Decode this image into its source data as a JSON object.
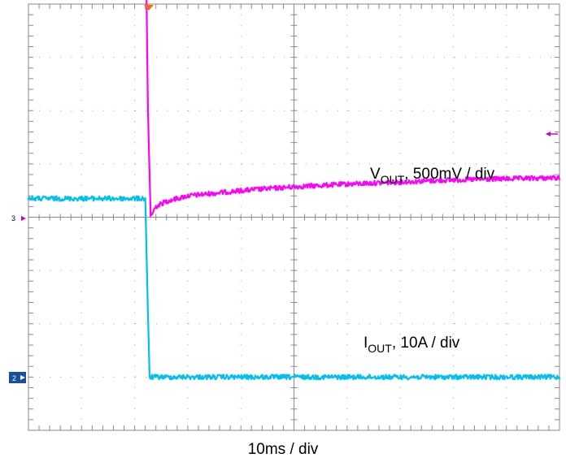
{
  "chart_data": {
    "type": "line",
    "title": "",
    "xlabel": "10ms / div",
    "ylabel": "",
    "x_divisions": 10,
    "y_divisions": 8,
    "grid": true,
    "series": [
      {
        "name": "VOUT, 500mV / div",
        "name_main": "V",
        "name_sub": "OUT",
        "name_rest": ", 500mV / div",
        "channel": "3",
        "color": "#ff00ff",
        "x": [
          0,
          2.2,
          2.25,
          2.3,
          2.4,
          2.6,
          3.0,
          4.0,
          5.0,
          6.0,
          7.0,
          8.0,
          9.0,
          10.0
        ],
        "y": [
          6.05,
          6.05,
          2.0,
          0.02,
          0.2,
          0.3,
          0.4,
          0.5,
          0.57,
          0.62,
          0.66,
          0.7,
          0.72,
          0.74
        ]
      },
      {
        "name": "IOUT, 10A / div",
        "name_main": "I",
        "name_sub": "OUT",
        "name_rest": ", 10A / div",
        "channel": "2",
        "color": "#00c0f0",
        "x": [
          0,
          2.2,
          2.25,
          2.28,
          10.0
        ],
        "y": [
          0.35,
          0.35,
          -1.8,
          -3.0,
          -3.0
        ]
      }
    ]
  },
  "markers": {
    "trigger_color": "#ff6a00",
    "ch3_label": "3",
    "ch2_label": "2",
    "ch3_color": "#cc00cc",
    "ch2_color": "#1a4fa0"
  }
}
